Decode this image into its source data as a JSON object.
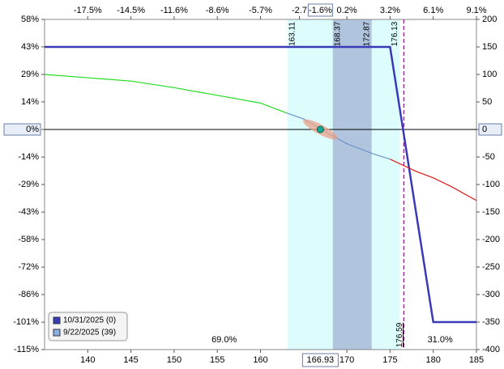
{
  "chart_data": {
    "type": "line",
    "xlim": [
      135,
      185
    ],
    "xticks": [
      140,
      145,
      150,
      155,
      160,
      170,
      175,
      180,
      185
    ],
    "ylim": [
      -400,
      200
    ],
    "yticks": [
      200,
      150,
      100,
      50,
      0,
      -50,
      -100,
      -150,
      -200,
      -250,
      -300,
      -350,
      -400
    ],
    "y2lim": [
      -115.6,
      57.8
    ],
    "y2ticks": [
      {
        "value": 57.8,
        "label": "58%"
      },
      {
        "value": 43.4,
        "label": "43%"
      },
      {
        "value": 28.9,
        "label": "29%"
      },
      {
        "value": 14.5,
        "label": "14%"
      },
      {
        "value": 0,
        "label": "0%"
      },
      {
        "value": -14.5,
        "label": "-14%"
      },
      {
        "value": -28.9,
        "label": "-29%"
      },
      {
        "value": -43.4,
        "label": "-43%"
      },
      {
        "value": -57.8,
        "label": "-58%"
      },
      {
        "value": -72.3,
        "label": "-72%"
      },
      {
        "value": -86.7,
        "label": "-86%"
      },
      {
        "value": -101.2,
        "label": "-101%"
      },
      {
        "value": -115.6,
        "label": "-115%"
      }
    ],
    "top_ticks": [
      {
        "value": 140,
        "label": "-17.5%"
      },
      {
        "value": 145,
        "label": "-14.5%"
      },
      {
        "value": 150,
        "label": "-11.6%"
      },
      {
        "value": 155,
        "label": "-8.6%"
      },
      {
        "value": 160,
        "label": "-5.7%"
      },
      {
        "value": 164.5,
        "label": "-2.7"
      },
      {
        "value": 170,
        "label": "0.2%"
      },
      {
        "value": 175,
        "label": "3.2%"
      },
      {
        "value": 180,
        "label": "6.1%"
      },
      {
        "value": 185,
        "label": "9.1%"
      }
    ],
    "current": {
      "x": 166.93,
      "x_label": "166.93",
      "top_label": "-1.6%",
      "y": 0
    },
    "bands": {
      "outer": [
        163.11,
        176.13
      ],
      "inner": [
        168.37,
        172.87
      ],
      "outer_color": "#ddfdfd",
      "inner_color": "#b0c4de",
      "labels": [
        "163.11",
        "168.37",
        "172.87",
        "176.13"
      ]
    },
    "breakeven": {
      "x": 176.59,
      "label": "176.59",
      "color": "#8b1a8b"
    },
    "probabilities": [
      "69.0%",
      "31.0%"
    ],
    "legend": "bottom-left",
    "series": [
      {
        "name": "10/31/2025 (0)",
        "color": "#3a3ab8",
        "x": [
          135,
          175,
          180,
          185
        ],
        "values": [
          150,
          150,
          -350,
          -350
        ]
      },
      {
        "name": "9/22/2025 (39)",
        "color": "#8aaee0",
        "segment_colors": [
          "#22dd22",
          "#6f94c8",
          "#e01818"
        ],
        "x": [
          135,
          140,
          145,
          150,
          155,
          160,
          163,
          165,
          167,
          170,
          173,
          175,
          178,
          180,
          182,
          185
        ],
        "values": [
          100,
          94,
          88,
          76,
          62,
          48,
          30,
          19,
          0,
          -26,
          -44,
          -54,
          -76,
          -88,
          -103,
          -129
        ]
      }
    ]
  }
}
